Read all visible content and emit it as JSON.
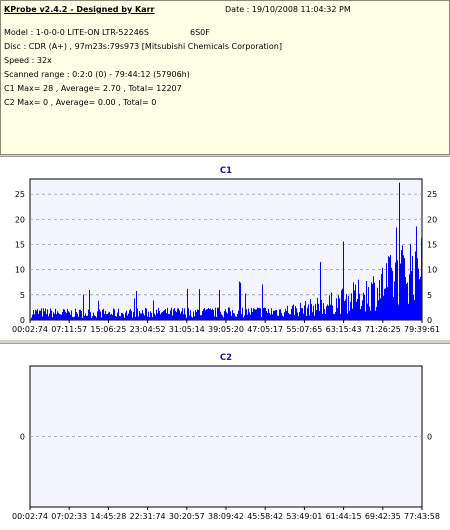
{
  "info": {
    "title": "KProbe v2.4.2 - Designed by Karr",
    "date": "Date : 19/10/2008 11:04:32 PM",
    "model": "Model : 1-0-0-0 LITE-ON LTR-52246S",
    "firmware": "6S0F",
    "disc": "Disc : CDR (A+) , 97m23s:79s973 [Mitsubishi Chemicals Corporation]",
    "speed": "Speed : 32x",
    "range": "Scanned range : 0:2:0 (0) - 79:44:12 (57906h)",
    "c1": "C1 Max= 28 , Average= 2.70 , Total= 12207",
    "c2": "C2 Max= 0 , Average= 0.00 , Total= 0"
  },
  "colors": {
    "bar": "#0000ff",
    "plot_bg": "#f4f4ff",
    "grid": "#9a9a9a"
  },
  "chart_data": [
    {
      "type": "bar",
      "title": "C1",
      "ylim": [
        0,
        28
      ],
      "yticks": [
        "0",
        "5",
        "10",
        "15",
        "20",
        "25"
      ],
      "xticks": [
        "00:02:74",
        "07:11:57",
        "15:06:25",
        "23:04:52",
        "31:05:14",
        "39:05:20",
        "47:05:17",
        "55:07:65",
        "63:15:43",
        "71:26:25",
        "79:39:61"
      ],
      "grid": true,
      "x_range": [
        "00:02:74",
        "79:39:61"
      ],
      "profile_minutes": [
        0,
        10,
        20,
        30,
        40,
        50,
        55,
        60,
        65,
        70,
        75,
        79.6
      ],
      "profile_avg": [
        1.5,
        1.3,
        1.4,
        1.5,
        1.5,
        1.7,
        2.2,
        3.0,
        4.2,
        6.0,
        9.0,
        12.0
      ],
      "profile_peak": [
        8,
        6,
        7,
        7,
        8,
        9,
        12,
        15,
        16,
        20,
        28,
        25
      ],
      "max": 28,
      "average": 2.7
    },
    {
      "type": "bar",
      "title": "C2",
      "ylim": [
        -1,
        1
      ],
      "yticks": [
        "0"
      ],
      "xticks": [
        "00:02:74",
        "07:02:33",
        "14:45:28",
        "22:31:74",
        "30:20:57",
        "38:09:42",
        "45:58:42",
        "53:49:01",
        "61:44:15",
        "69:42:35",
        "77:43:58"
      ],
      "grid": true,
      "values": [],
      "max": 0,
      "average": 0.0
    }
  ]
}
